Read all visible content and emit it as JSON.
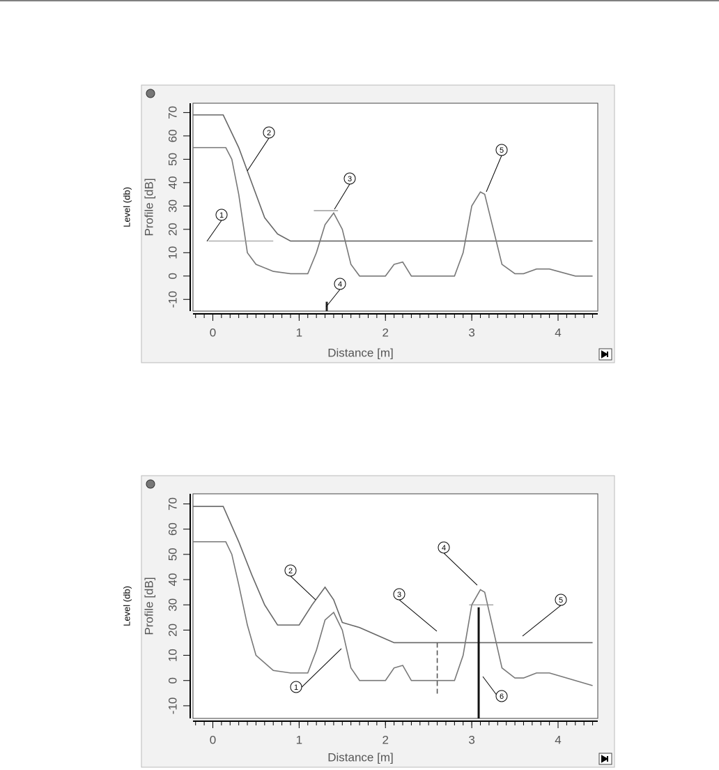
{
  "chart_data": [
    {
      "type": "line",
      "y_label": "Profile [dB]",
      "x_label": "Distance [m]",
      "side_label": "Level (db)",
      "xlim": [
        -0.23,
        4.46
      ],
      "ylim": [
        -15,
        74
      ],
      "xticks": [
        0,
        1,
        2,
        3,
        4
      ],
      "yticks": [
        -10,
        0,
        10,
        20,
        30,
        40,
        50,
        60,
        70
      ],
      "series": [
        {
          "color": "#666666",
          "style": "solid",
          "x": [
            -0.23,
            0.12,
            0.3,
            0.45,
            0.6,
            0.75,
            0.9,
            4.4
          ],
          "values": [
            69,
            69,
            55,
            40,
            25,
            18,
            15,
            15
          ]
        },
        {
          "color": "#777777",
          "style": "solid",
          "x": [
            -0.23,
            0.15,
            0.22,
            0.3,
            0.4,
            0.5,
            0.7,
            0.9,
            1.1,
            1.2,
            1.3,
            1.4,
            1.5,
            1.6,
            1.7,
            2.0,
            2.1,
            2.2,
            2.3,
            2.8,
            2.9,
            3.0,
            3.1,
            3.15,
            3.25,
            3.35,
            3.5,
            3.6,
            3.75,
            3.9,
            4.1,
            4.2,
            4.4
          ],
          "values": [
            55,
            55,
            50,
            35,
            10,
            5,
            2,
            1,
            1,
            10,
            22,
            27,
            20,
            5,
            0,
            0,
            5,
            6,
            0,
            0,
            10,
            30,
            36,
            35,
            20,
            5,
            1,
            1,
            3,
            3,
            1,
            0,
            0
          ]
        },
        {
          "color": "#999999",
          "style": "thin",
          "x": [
            -0.05,
            0.7
          ],
          "values": [
            15,
            15
          ]
        },
        {
          "color": "#888888",
          "style": "thin",
          "x": [
            1.17,
            1.45
          ],
          "values": [
            28,
            28
          ]
        },
        {
          "color": "#222222",
          "style": "bold",
          "x": [
            1.32,
            1.32
          ],
          "values": [
            -15,
            -11
          ]
        }
      ],
      "annotations": [
        "1",
        "2",
        "3",
        "4",
        "5"
      ]
    },
    {
      "type": "line",
      "y_label": "Profile [dB]",
      "x_label": "Distance [m]",
      "side_label": "Level (db)",
      "xlim": [
        -0.23,
        4.46
      ],
      "ylim": [
        -15,
        74
      ],
      "xticks": [
        0,
        1,
        2,
        3,
        4
      ],
      "yticks": [
        -10,
        0,
        10,
        20,
        30,
        40,
        50,
        60,
        70
      ],
      "series": [
        {
          "color": "#666666",
          "style": "solid",
          "x": [
            -0.23,
            0.12,
            0.3,
            0.45,
            0.6,
            0.75,
            1.0,
            1.15,
            1.3,
            1.4,
            1.5,
            1.7,
            1.9,
            2.1,
            4.4
          ],
          "values": [
            69,
            69,
            55,
            42,
            30,
            22,
            22,
            30,
            37,
            32,
            23,
            21,
            18,
            15,
            15
          ]
        },
        {
          "color": "#777777",
          "style": "solid",
          "x": [
            -0.23,
            0.15,
            0.22,
            0.3,
            0.4,
            0.5,
            0.7,
            0.9,
            1.1,
            1.2,
            1.3,
            1.4,
            1.5,
            1.6,
            1.7,
            2.0,
            2.1,
            2.2,
            2.3,
            2.8,
            2.9,
            3.0,
            3.1,
            3.15,
            3.25,
            3.35,
            3.5,
            3.6,
            3.75,
            3.9,
            4.1,
            4.2,
            4.4
          ],
          "values": [
            55,
            55,
            50,
            38,
            22,
            10,
            4,
            3,
            3,
            12,
            24,
            27,
            20,
            5,
            0,
            0,
            5,
            6,
            0,
            0,
            10,
            30,
            36,
            35,
            20,
            5,
            1,
            1,
            3,
            3,
            1,
            0,
            -2
          ]
        },
        {
          "color": "#555555",
          "style": "dashed",
          "x": [
            2.6,
            2.6
          ],
          "values": [
            15,
            -6
          ]
        },
        {
          "color": "#888888",
          "style": "thin",
          "x": [
            2.97,
            3.25
          ],
          "values": [
            30,
            30
          ]
        },
        {
          "color": "#111111",
          "style": "bold",
          "x": [
            3.08,
            3.08
          ],
          "values": [
            29,
            -15
          ]
        }
      ],
      "annotations": [
        "1",
        "2",
        "3",
        "4",
        "5",
        "6"
      ]
    }
  ]
}
